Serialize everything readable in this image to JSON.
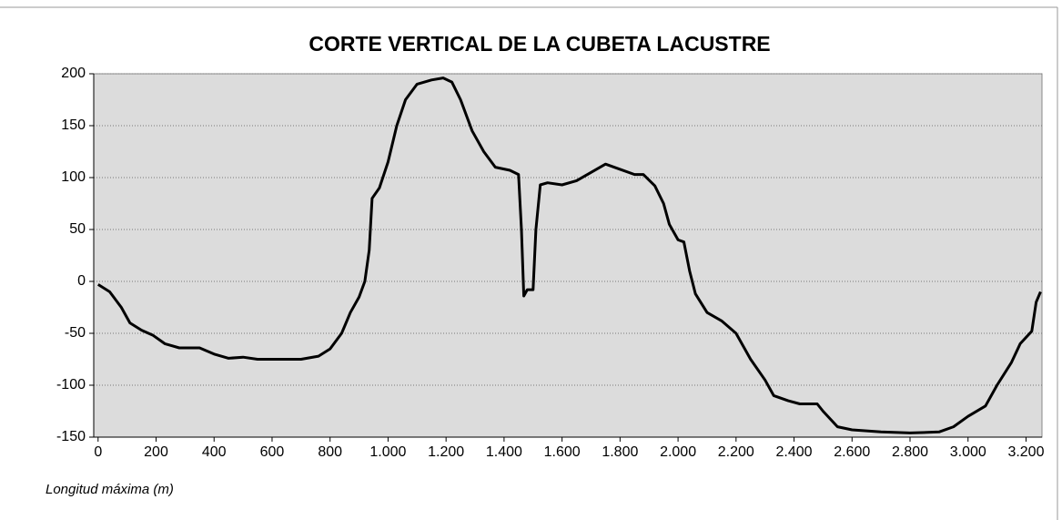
{
  "chart_data": {
    "type": "line",
    "title": "CORTE VERTICAL DE LA CUBETA LACUSTRE",
    "x_label": "Longitud máxima (m)",
    "x": [
      0,
      40,
      80,
      110,
      150,
      190,
      230,
      280,
      350,
      400,
      450,
      500,
      550,
      700,
      760,
      800,
      840,
      870,
      900,
      920,
      935,
      945,
      970,
      1000,
      1030,
      1060,
      1100,
      1150,
      1190,
      1220,
      1250,
      1290,
      1330,
      1370,
      1420,
      1450,
      1460,
      1468,
      1480,
      1500,
      1510,
      1525,
      1550,
      1600,
      1650,
      1700,
      1750,
      1800,
      1850,
      1880,
      1920,
      1950,
      1970,
      2000,
      2020,
      2040,
      2060,
      2100,
      2150,
      2200,
      2250,
      2300,
      2330,
      2380,
      2420,
      2480,
      2500,
      2550,
      2600,
      2700,
      2800,
      2900,
      2950,
      3000,
      3060,
      3100,
      3150,
      3180,
      3220,
      3235,
      3250
    ],
    "values": [
      -3,
      -10,
      -25,
      -40,
      -47,
      -52,
      -60,
      -64,
      -64,
      -70,
      -74,
      -73,
      -75,
      -75,
      -72,
      -65,
      -50,
      -30,
      -15,
      0,
      30,
      80,
      90,
      115,
      150,
      175,
      190,
      194,
      196,
      192,
      175,
      145,
      125,
      110,
      107,
      103,
      50,
      -14,
      -8,
      -8,
      50,
      93,
      95,
      93,
      97,
      105,
      113,
      108,
      103,
      103,
      92,
      75,
      55,
      40,
      38,
      10,
      -12,
      -30,
      -38,
      -50,
      -75,
      -95,
      -110,
      -115,
      -118,
      -118,
      -125,
      -140,
      -143,
      -145,
      -146,
      -145,
      -140,
      -130,
      -120,
      -100,
      -78,
      -60,
      -48,
      -20,
      -10
    ],
    "color": "#000000",
    "xlim": [
      -15,
      3255
    ],
    "ylim": [
      -150,
      200
    ],
    "xticks": [
      0,
      200,
      400,
      600,
      800,
      {
        "value": 1000,
        "label": "1.000"
      },
      {
        "value": 1200,
        "label": "1.200"
      },
      {
        "value": 1400,
        "label": "1.400"
      },
      {
        "value": 1600,
        "label": "1.600"
      },
      {
        "value": 1800,
        "label": "1.800"
      },
      {
        "value": 2000,
        "label": "2.000"
      },
      {
        "value": 2200,
        "label": "2.200"
      },
      {
        "value": 2400,
        "label": "2.400"
      },
      {
        "value": 2600,
        "label": "2.600"
      },
      {
        "value": 2800,
        "label": "2.800"
      },
      {
        "value": 3000,
        "label": "3.000"
      },
      {
        "value": 3200,
        "label": "3.200"
      }
    ],
    "yticks": [
      -150,
      -100,
      -50,
      0,
      50,
      100,
      150,
      200
    ],
    "grid": true
  }
}
